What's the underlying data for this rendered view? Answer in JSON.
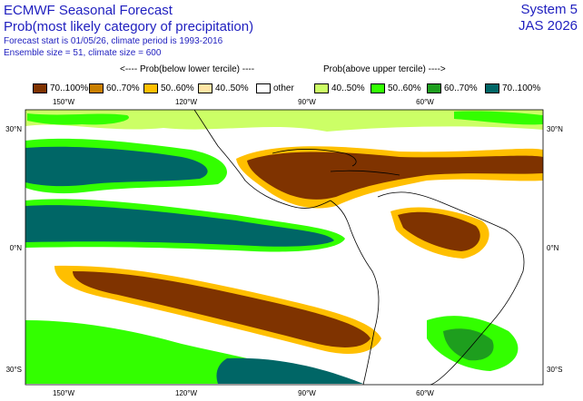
{
  "header": {
    "title": "ECMWF Seasonal Forecast",
    "subtitle": "Prob(most likely category of precipitation)",
    "forecast_info": "Forecast start is 01/05/26, climate period is 1993-2016",
    "ensemble_info": "Ensemble size = 51, climate size = 600",
    "system": "System 5",
    "season": "JAS 2026"
  },
  "legend": {
    "below_heading": "<---- Prob(below lower tercile) ----",
    "above_heading": "Prob(above upper tercile) ---->",
    "items": [
      {
        "label": "70..100%",
        "color": "#7f3300"
      },
      {
        "label": "60..70%",
        "color": "#c97f00"
      },
      {
        "label": "50..60%",
        "color": "#ffbf00"
      },
      {
        "label": "40..50%",
        "color": "#ffe5a5"
      },
      {
        "label": "other",
        "color": "#ffffff"
      },
      {
        "label": "40..50%",
        "color": "#ccff66"
      },
      {
        "label": "50..60%",
        "color": "#33ff00"
      },
      {
        "label": "60..70%",
        "color": "#1e9e1e"
      },
      {
        "label": "70..100%",
        "color": "#006666"
      }
    ]
  },
  "map": {
    "lon_labels_top": [
      "150°W",
      "120°W",
      "90°W",
      "60°W"
    ],
    "lon_labels_bottom": [
      "150°W",
      "120°W",
      "90°W",
      "60°W"
    ],
    "lat_labels_left": [
      "30°N",
      "0°N",
      "30°S"
    ],
    "lat_labels_right": [
      "30°N",
      "0°N",
      "30°S"
    ],
    "region_colors": {
      "ocean_background": "#ffffff",
      "coastline": "#000000"
    }
  }
}
